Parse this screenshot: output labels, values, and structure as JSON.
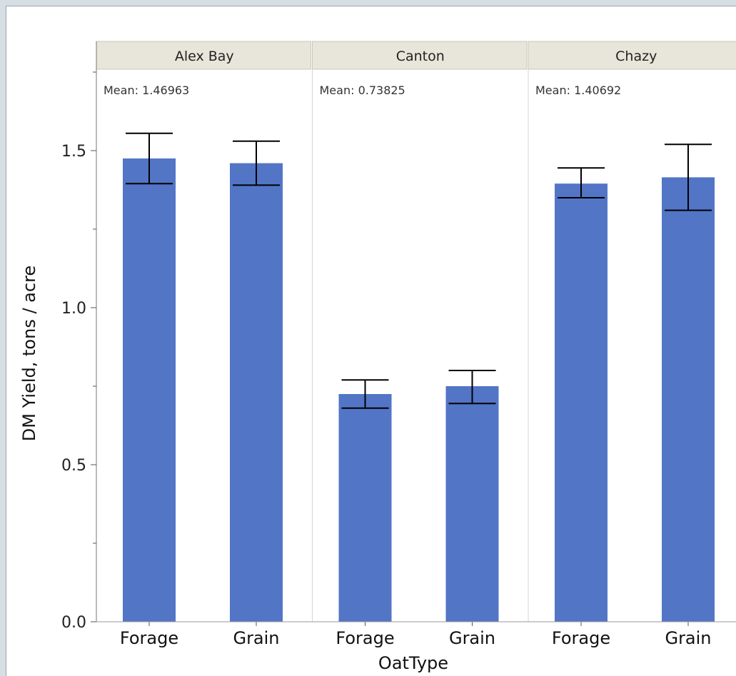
{
  "chart_data": {
    "type": "bar",
    "facet_variable": "",
    "facets": [
      {
        "label": "Alex Bay",
        "mean_text": "Mean: 1.46963",
        "categories": [
          "Forage",
          "Grain"
        ],
        "values": [
          1.475,
          1.46
        ],
        "error_low": [
          1.395,
          1.39
        ],
        "error_high": [
          1.555,
          1.53
        ]
      },
      {
        "label": "Canton",
        "mean_text": "Mean: 0.73825",
        "categories": [
          "Forage",
          "Grain"
        ],
        "values": [
          0.725,
          0.75
        ],
        "error_low": [
          0.68,
          0.695
        ],
        "error_high": [
          0.77,
          0.8
        ]
      },
      {
        "label": "Chazy",
        "mean_text": "Mean: 1.40692",
        "categories": [
          "Forage",
          "Grain"
        ],
        "values": [
          1.395,
          1.415
        ],
        "error_low": [
          1.35,
          1.31
        ],
        "error_high": [
          1.445,
          1.52
        ]
      }
    ],
    "ylim": [
      0,
      1.76
    ],
    "yticks": [
      "0.0",
      "0.5",
      "1.0",
      "1.5"
    ],
    "ytick_values": [
      0,
      0.5,
      1.0,
      1.5
    ],
    "ylabel": "DM Yield, tons / acre",
    "xlabel": "OatType",
    "grid": false,
    "bar_color": "#5275c6",
    "header_color": "#e8e6da"
  }
}
